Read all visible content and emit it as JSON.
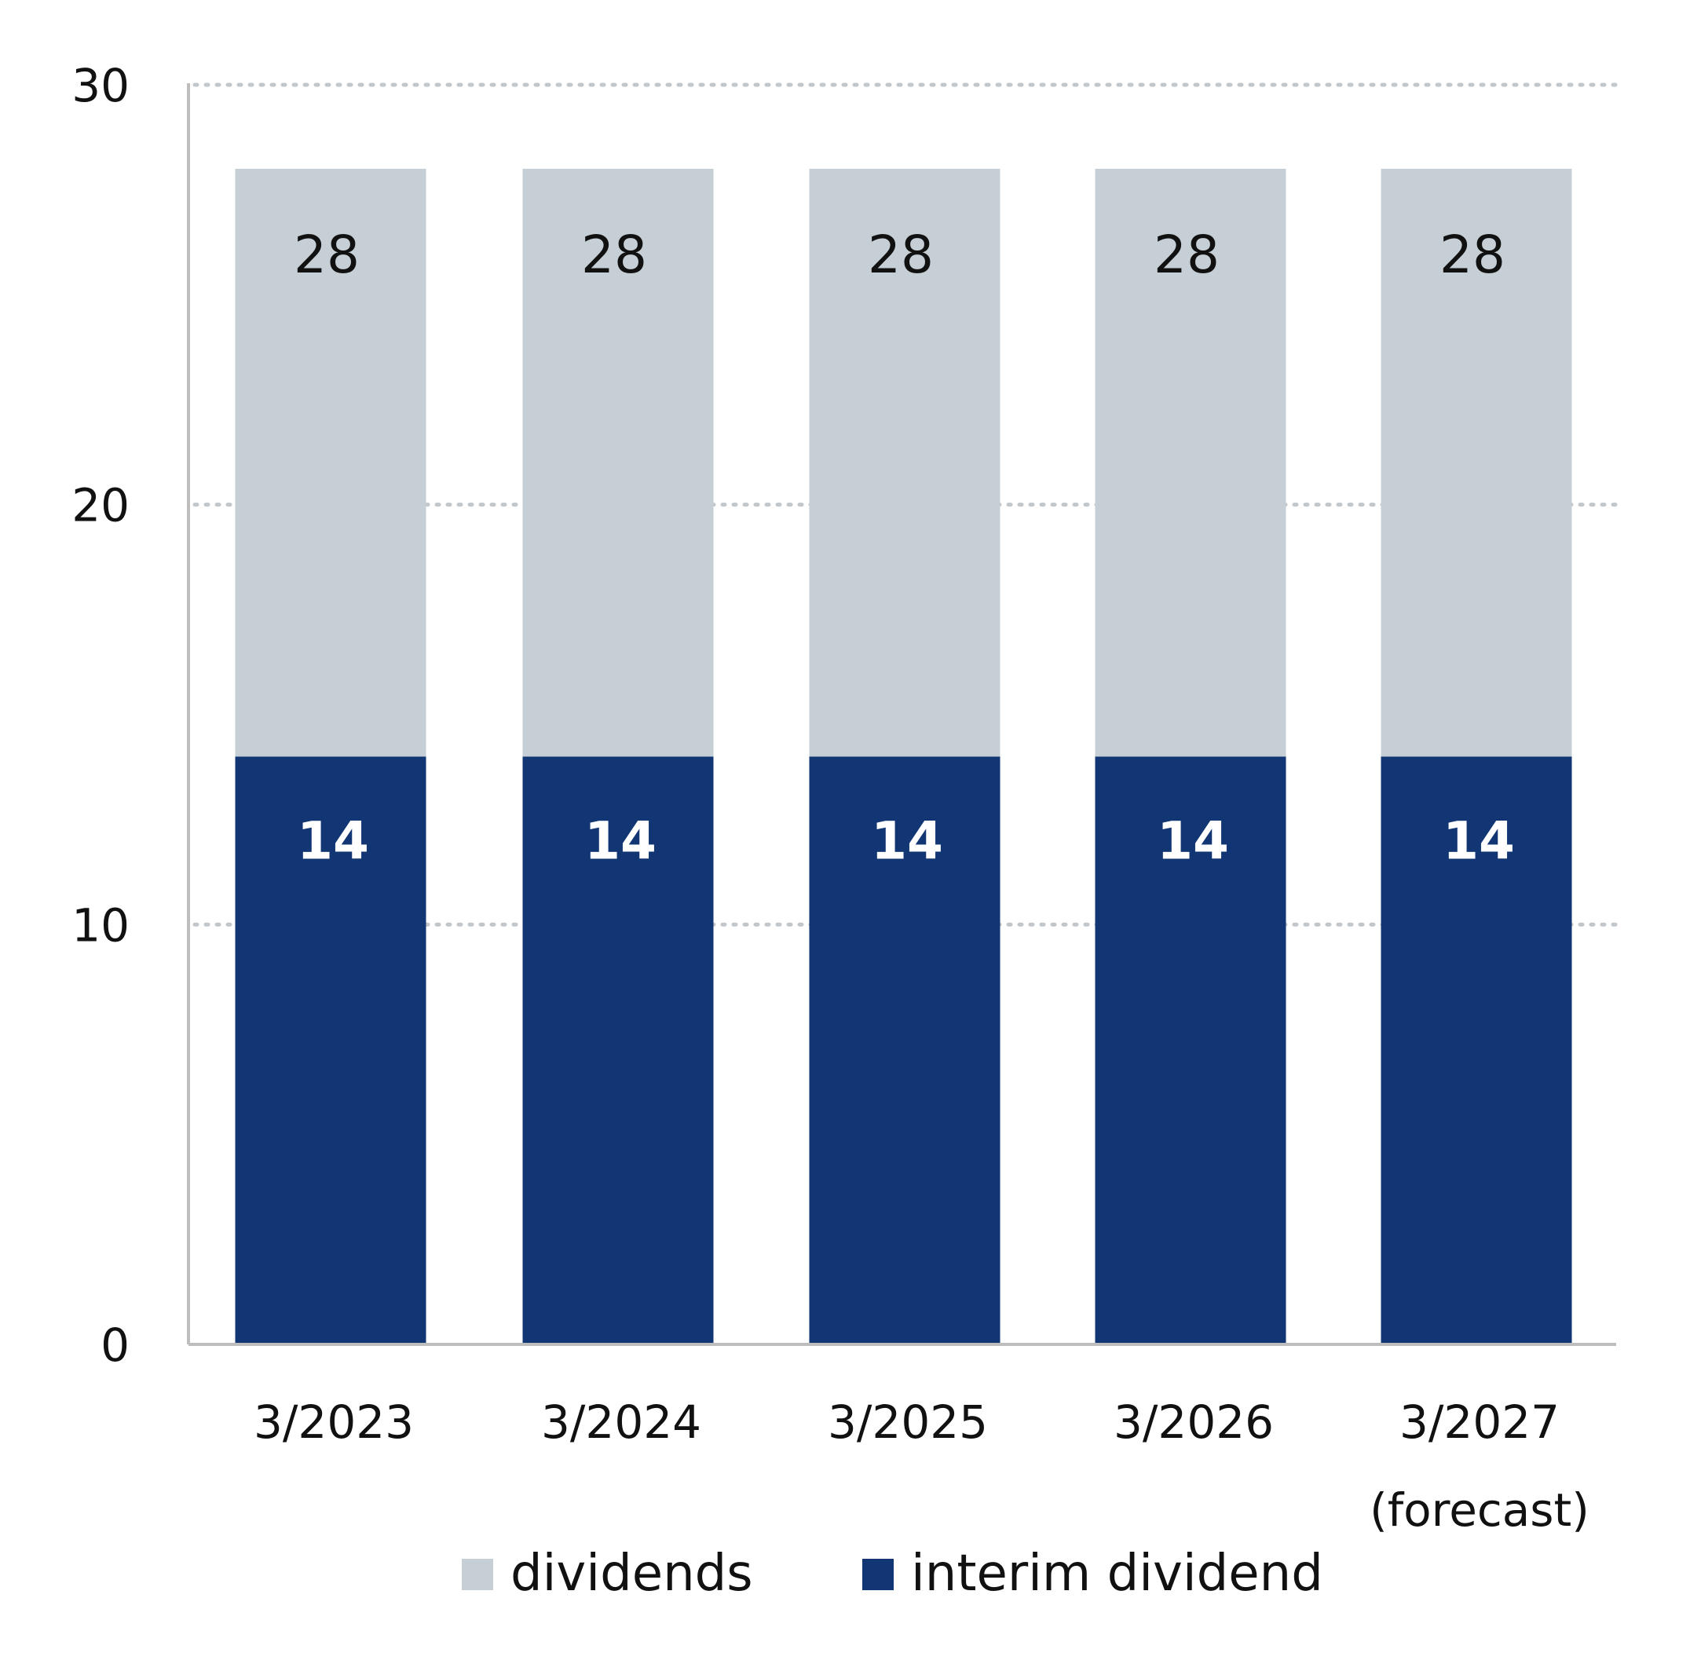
{
  "chart_data": {
    "type": "bar",
    "stacked": true,
    "categories": [
      [
        "3/2023"
      ],
      [
        "3/2024"
      ],
      [
        "3/2025"
      ],
      [
        "3/2026"
      ],
      [
        "3/2027",
        "(forecast)"
      ]
    ],
    "series": [
      {
        "name": "interim dividend",
        "values": [
          14,
          14,
          14,
          14,
          14
        ],
        "labels": [
          "14",
          "14",
          "14",
          "14",
          "14"
        ],
        "color": "#113673",
        "label_color": "#ffffff"
      },
      {
        "name": "dividends",
        "values": [
          14,
          14,
          14,
          14,
          14
        ],
        "labels": [
          "28",
          "28",
          "28",
          "28",
          "28"
        ],
        "color": "#c5cfd5",
        "label_color": "#111111"
      }
    ],
    "legend_order": [
      1,
      0
    ],
    "yticks": [
      0,
      10,
      20,
      30
    ],
    "ylim": [
      0,
      30
    ],
    "grid": "dotted-horizontal",
    "legend_position": "bottom-center"
  }
}
